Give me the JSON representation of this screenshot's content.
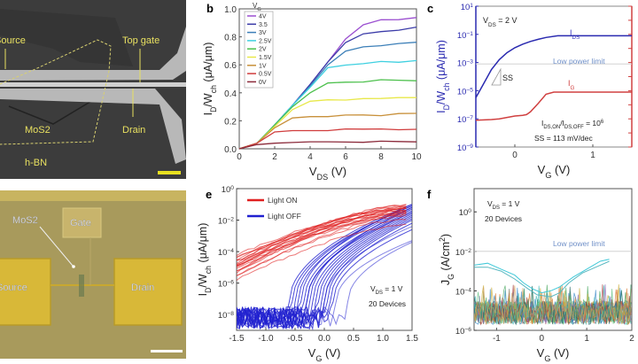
{
  "panel_a": {
    "labels": [
      "Source",
      "Top gate",
      "MoS2",
      "Drain",
      "h-BN"
    ],
    "colors": {
      "background": "#3a3a3a",
      "electrode": "#c8c8c8",
      "label": "#e8e060"
    }
  },
  "panel_d": {
    "labels": [
      "MoS2",
      "Gate",
      "Source",
      "Drain"
    ],
    "colors": {
      "background": "#a89a5c",
      "pad": "#d8b838",
      "label": "#eeeeee"
    }
  },
  "chart_data": [
    {
      "panel": "b",
      "type": "line",
      "xlabel": {
        "main": "V",
        "sub": "DS",
        "rest": " (V)"
      },
      "ylabel": {
        "main": "I",
        "sub": "D",
        "mid": "/W",
        "sub2": "ch",
        "rest": " (μA/μm)"
      },
      "xlim": [
        0,
        10
      ],
      "ylim": [
        0,
        1.0
      ],
      "xticks": [
        0,
        2,
        4,
        6,
        8,
        10
      ],
      "yticks": [
        "0.0",
        "0.2",
        "0.4",
        "0.6",
        "0.8",
        "1.0"
      ],
      "legend_title": {
        "main": "V",
        "sub": "G"
      },
      "legend_placement": "top-left",
      "x": [
        0,
        1,
        2,
        3,
        4,
        5,
        6,
        7,
        8,
        9,
        10
      ],
      "series": [
        {
          "name": "4V",
          "color": "#9b4fd0",
          "values": [
            0,
            0.04,
            0.17,
            0.31,
            0.46,
            0.62,
            0.78,
            0.89,
            0.92,
            0.92,
            0.94
          ]
        },
        {
          "name": "3.5",
          "color": "#3b3ba8",
          "values": [
            0,
            0.04,
            0.17,
            0.31,
            0.46,
            0.62,
            0.76,
            0.82,
            0.84,
            0.85,
            0.87
          ]
        },
        {
          "name": "3V",
          "color": "#3c7fb8",
          "values": [
            0,
            0.04,
            0.17,
            0.31,
            0.45,
            0.6,
            0.7,
            0.73,
            0.74,
            0.75,
            0.76
          ]
        },
        {
          "name": "2.5V",
          "color": "#3fd0e0",
          "values": [
            0,
            0.04,
            0.17,
            0.31,
            0.44,
            0.58,
            0.6,
            0.61,
            0.62,
            0.62,
            0.63
          ]
        },
        {
          "name": "2V",
          "color": "#4cc04c",
          "values": [
            0,
            0.04,
            0.17,
            0.3,
            0.4,
            0.47,
            0.48,
            0.48,
            0.49,
            0.49,
            0.49
          ]
        },
        {
          "name": "1.5V",
          "color": "#e8e84a",
          "values": [
            0,
            0.04,
            0.16,
            0.28,
            0.34,
            0.35,
            0.35,
            0.36,
            0.36,
            0.37,
            0.37
          ]
        },
        {
          "name": "1V",
          "color": "#c8903a",
          "values": [
            0,
            0.04,
            0.15,
            0.22,
            0.23,
            0.23,
            0.24,
            0.24,
            0.24,
            0.25,
            0.25
          ]
        },
        {
          "name": "0.5V",
          "color": "#d03c3c",
          "values": [
            0,
            0.04,
            0.12,
            0.13,
            0.13,
            0.13,
            0.14,
            0.14,
            0.14,
            0.14,
            0.14
          ]
        },
        {
          "name": "0V",
          "color": "#8b2a3a",
          "values": [
            0,
            0.03,
            0.04,
            0.045,
            0.05,
            0.05,
            0.05,
            0.05,
            0.05,
            0.05,
            0.05
          ]
        }
      ]
    },
    {
      "panel": "c",
      "type": "line",
      "yscale": "log",
      "xlabel": {
        "main": "V",
        "sub": "G",
        "rest": " (V)"
      },
      "ylabel": {
        "main": "I",
        "sub": "D",
        "mid": "/W",
        "sub2": "ch",
        "rest": " (μA/μm)"
      },
      "xlim": [
        -0.5,
        1.5
      ],
      "ylim": [
        1e-09,
        10
      ],
      "xticks": [
        0,
        1
      ],
      "ytick_exponents": [
        1,
        -1,
        -3,
        -5,
        -7,
        -9
      ],
      "left_axis_color": "#2a2ab0",
      "right_axis_color": "#d04040",
      "annotations": {
        "vds": {
          "main": "V",
          "sub": "DS",
          "rest": " = 2 V"
        },
        "ids": {
          "main": "I",
          "sub": "DS"
        },
        "ig": {
          "main": "I",
          "sub": "G"
        },
        "low_power": "Low power limit",
        "ss": "SS",
        "ratio": {
          "a": "I",
          "asub": "DS,ON",
          "b": "/I",
          "bsub": "DS,OFF",
          "c": " = 10",
          "sup": "6"
        },
        "ss_value": "SS = 113 mV/dec"
      },
      "low_power_limit": 0.001,
      "series": [
        {
          "name": "IDS",
          "color": "#2a2ab0",
          "x": [
            -0.5,
            -0.4,
            -0.3,
            -0.2,
            -0.1,
            0,
            0.1,
            0.2,
            0.3,
            0.4,
            0.55,
            1.0,
            1.5
          ],
          "log10": [
            -5.5,
            -4.5,
            -3.5,
            -2.8,
            -2.3,
            -1.95,
            -1.7,
            -1.5,
            -1.35,
            -1.22,
            -1.1,
            -1.1,
            -1.1
          ]
        },
        {
          "name": "IG",
          "color": "#d04040",
          "x": [
            -0.5,
            -0.3,
            -0.2,
            -0.1,
            0,
            0.1,
            0.15,
            0.2,
            0.3,
            0.4,
            0.5,
            1.0,
            1.5
          ],
          "log10": [
            -7.1,
            -7.05,
            -7.0,
            -6.9,
            -6.8,
            -6.75,
            -6.7,
            -6.5,
            -5.9,
            -5.25,
            -5.1,
            -5.1,
            -5.1
          ]
        }
      ]
    },
    {
      "panel": "e",
      "type": "line",
      "yscale": "log",
      "xlabel": {
        "main": "V",
        "sub": "G",
        "rest": " (V)"
      },
      "ylabel": {
        "main": "I",
        "sub": "D",
        "mid": "/W",
        "sub2": "ch",
        "rest": " (μA/μm)"
      },
      "xlim": [
        -1.5,
        1.5
      ],
      "ylim": [
        1e-09,
        1
      ],
      "xticks": [
        "-1.5",
        "-1.0",
        "-0.5",
        "0.0",
        "0.5",
        "1.0",
        "1.5"
      ],
      "ytick_exponents": [
        0,
        -2,
        -4,
        -6,
        -8
      ],
      "legend": [
        {
          "name": "Light ON",
          "color": "#e02020"
        },
        {
          "name": "Light OFF",
          "color": "#2020d0"
        }
      ],
      "legend_placement": "top-left",
      "annotations": {
        "vds": {
          "main": "V",
          "sub": "DS",
          "rest": " = 1 V"
        },
        "devices": "20 Devices"
      },
      "light_on_log10_at_vg_minus1_5": [
        -5.3,
        -5.0,
        -4.8,
        -4.6,
        -4.3,
        -5.6,
        -4.9,
        -5.2,
        -4.4,
        -4.7,
        -5.1,
        -5.5,
        -4.5,
        -4.9,
        -4.2,
        -5.8,
        -4.6,
        -5.0,
        -4.8,
        -5.3
      ],
      "light_on_log10_at_vg_1_5": [
        -1.2,
        -1.3,
        -1.5,
        -1.0,
        -1.4,
        -1.7,
        -1.1,
        -1.6,
        -1.2,
        -1.3,
        -1.5,
        -1.9,
        -1.1,
        -1.4,
        -1.2,
        -2.3,
        -1.3,
        -1.6,
        -1.0,
        -1.5
      ],
      "light_off_threshold_vg": [
        -0.6,
        -0.5,
        -0.45,
        -0.4,
        -0.35,
        -0.3,
        -0.25,
        -0.2,
        -0.15,
        -0.1,
        -0.05,
        0.0,
        0.05,
        0.1,
        0.15,
        -0.55,
        -0.3,
        0.0,
        0.2,
        0.4
      ],
      "light_off_log10_at_vg_1_5": [
        -1.0,
        -1.1,
        -1.2,
        -1.0,
        -1.3,
        -1.4,
        -1.2,
        -1.5,
        -1.6,
        -1.7,
        -1.8,
        -1.9,
        -2.0,
        -2.2,
        -2.6,
        -1.1,
        -1.5,
        -2.4,
        -3.3,
        -3.4
      ],
      "off_noise_floor_log10": -8.2
    },
    {
      "panel": "f",
      "type": "line",
      "yscale": "log",
      "xlabel": {
        "main": "V",
        "sub": "G",
        "rest": " (V)"
      },
      "ylabel": {
        "main": "J",
        "sub": "G",
        "rest": " (A/cm",
        "sup": "2",
        "end": ")"
      },
      "xlim": [
        -1.5,
        2
      ],
      "ylim": [
        1e-06,
        15
      ],
      "xticks": [
        "-1",
        "0",
        "1",
        "2"
      ],
      "ytick_exponents": [
        0,
        -2,
        -4,
        -6
      ],
      "annotations": {
        "vds": {
          "main": "V",
          "sub": "DS",
          "rest": " = 1 V"
        },
        "devices": "20 Devices",
        "low_power": "Low power limit"
      },
      "low_power_limit": 0.01,
      "noise_floor_log10": [
        -6,
        -4.3
      ],
      "outlier_series": [
        {
          "color": "#40c8d8",
          "x": [
            -1.5,
            -1.2,
            -0.9,
            -0.6,
            -0.4,
            -0.2,
            0.0,
            0.2,
            0.4,
            0.7,
            1.0,
            1.3,
            1.5
          ],
          "log10": [
            -2.7,
            -2.6,
            -2.9,
            -3.2,
            -3.6,
            -3.9,
            -4.1,
            -4.0,
            -3.8,
            -3.3,
            -2.9,
            -2.5,
            -2.4
          ]
        },
        {
          "color": "#58b8c0",
          "x": [
            -1.5,
            -1.2,
            -0.9,
            -0.6,
            -0.3,
            -0.1,
            0.2,
            0.4,
            0.6,
            0.9,
            1.2,
            1.5
          ],
          "log10": [
            -2.8,
            -2.8,
            -3.0,
            -3.4,
            -3.9,
            -4.2,
            -4.3,
            -4.1,
            -3.6,
            -3.1,
            -2.8,
            -2.5
          ]
        }
      ]
    }
  ],
  "panel_letters": [
    "b",
    "c",
    "e",
    "f"
  ]
}
